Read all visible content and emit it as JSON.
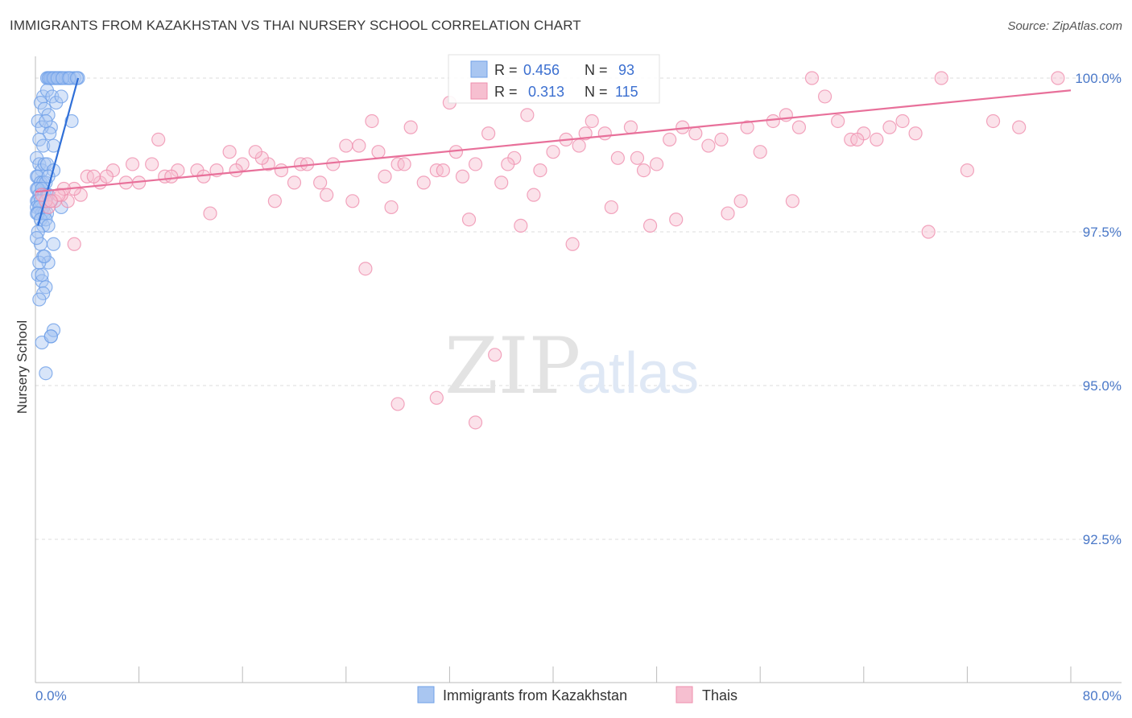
{
  "header": {
    "title": "IMMIGRANTS FROM KAZAKHSTAN VS THAI NURSERY SCHOOL CORRELATION CHART",
    "source": "Source: ZipAtlas.com"
  },
  "watermark": {
    "zip": "ZIP",
    "atlas": "atlas"
  },
  "colors": {
    "blue": "#6fa0e8",
    "blue_fill": "#a9c6f1",
    "blue_line": "#2f6fd8",
    "pink": "#ef8fae",
    "pink_fill": "#f6bfd0",
    "pink_line": "#e8709a",
    "tick": "#4a78c8"
  },
  "stats": {
    "r_label": "R =",
    "n_label": "N =",
    "blue": {
      "r": "0.456",
      "n": "93"
    },
    "pink": {
      "r": "0.313",
      "n": "115"
    }
  },
  "legend": [
    "Immigrants from Kazakhstan",
    "Thais"
  ],
  "chart_data": {
    "type": "scatter",
    "ylabel": "Nursery School",
    "xlim": [
      0,
      80
    ],
    "ylim": [
      90.5,
      100.3
    ],
    "x_tick_labels": [
      "0.0%",
      "80.0%"
    ],
    "y_ticks": [
      100.0,
      97.5,
      95.0,
      92.5
    ],
    "y_tick_labels": [
      "100.0%",
      "97.5%",
      "95.0%",
      "92.5%"
    ],
    "series": [
      {
        "name": "Immigrants from Kazakhstan",
        "trend": {
          "x": [
            0.2,
            3.3
          ],
          "y": [
            97.6,
            100.0
          ]
        },
        "x": [
          0.9,
          1.0,
          1.2,
          1.3,
          1.5,
          1.6,
          1.8,
          1.9,
          2.0,
          2.3,
          2.5,
          2.7,
          3.0,
          3.3,
          1.1,
          1.4,
          1.7,
          2.1,
          2.6,
          3.2,
          0.6,
          0.9,
          1.3,
          1.6,
          2.0,
          0.4,
          0.7,
          1.0,
          1.2,
          2.8,
          0.2,
          0.5,
          0.8,
          1.1,
          0.3,
          0.6,
          1.4,
          0.1,
          0.3,
          0.5,
          0.7,
          0.9,
          1.4,
          0.1,
          0.2,
          0.4,
          0.6,
          0.8,
          1.0,
          0.1,
          0.2,
          0.3,
          0.5,
          0.7,
          0.9,
          0.1,
          0.2,
          0.4,
          0.6,
          0.8,
          1.0,
          1.2,
          0.1,
          0.3,
          0.5,
          0.7,
          0.9,
          0.1,
          0.2,
          0.4,
          0.6,
          0.8,
          1.0,
          0.2,
          0.4,
          0.6,
          1.0,
          0.2,
          0.5,
          0.8,
          0.1,
          0.3,
          0.6,
          1.4,
          2.0,
          0.3,
          0.5,
          0.7,
          1.2,
          1.4,
          0.5,
          1.2,
          0.8
        ],
        "y": [
          100.0,
          100.0,
          100.0,
          100.0,
          100.0,
          100.0,
          100.0,
          100.0,
          100.0,
          100.0,
          100.0,
          100.0,
          100.0,
          100.0,
          100.0,
          100.0,
          100.0,
          100.0,
          100.0,
          100.0,
          99.7,
          99.8,
          99.7,
          99.6,
          99.7,
          99.6,
          99.5,
          99.4,
          99.2,
          99.3,
          99.3,
          99.2,
          99.3,
          99.1,
          99.0,
          98.9,
          98.9,
          98.7,
          98.6,
          98.5,
          98.6,
          98.6,
          98.5,
          98.4,
          98.4,
          98.3,
          98.3,
          98.3,
          98.4,
          98.2,
          98.2,
          98.1,
          98.2,
          98.1,
          98.1,
          98.0,
          98.0,
          98.0,
          97.9,
          98.0,
          98.1,
          98.0,
          97.9,
          97.9,
          97.8,
          97.8,
          97.8,
          97.8,
          97.8,
          97.7,
          97.6,
          97.7,
          97.6,
          97.5,
          97.3,
          97.1,
          97.0,
          96.8,
          96.7,
          96.6,
          97.4,
          97.0,
          96.5,
          97.3,
          97.9,
          96.4,
          96.8,
          97.1,
          95.8,
          95.9,
          95.7,
          95.8,
          95.2
        ]
      },
      {
        "name": "Thais",
        "trend": {
          "x": [
            0.0,
            80.0
          ],
          "y": [
            98.15,
            99.8
          ]
        },
        "x": [
          26.0,
          32.0,
          38.0,
          43.0,
          50.0,
          60.0,
          70.0,
          35.0,
          29.0,
          24.0,
          18.0,
          14.0,
          10.0,
          8.0,
          6.0,
          5.0,
          4.0,
          3.5,
          3.0,
          2.5,
          2.0,
          1.5,
          1.0,
          0.8,
          0.5,
          7.0,
          9.0,
          11.0,
          12.5,
          15.0,
          16.0,
          17.5,
          19.0,
          20.5,
          22.0,
          23.0,
          25.0,
          27.0,
          28.0,
          30.0,
          31.0,
          33.0,
          34.0,
          36.0,
          37.0,
          39.0,
          40.0,
          41.0,
          42.0,
          44.0,
          45.0,
          46.0,
          47.0,
          48.0,
          49.0,
          51.0,
          52.0,
          53.0,
          55.0,
          57.0,
          58.0,
          59.0,
          62.0,
          63.0,
          64.0,
          65.0,
          66.0,
          67.0,
          68.0,
          72.0,
          74.0,
          76.0,
          79.0,
          9.5,
          13.0,
          21.0,
          26.5,
          31.5,
          36.5,
          42.5,
          46.5,
          56.0,
          61.0,
          13.5,
          18.5,
          22.5,
          27.5,
          33.5,
          37.5,
          41.5,
          47.5,
          53.5,
          5.5,
          7.5,
          10.5,
          15.5,
          17.0,
          20.0,
          24.5,
          28.5,
          32.5,
          38.5,
          44.5,
          49.5,
          54.5,
          58.5,
          63.5,
          69.0,
          3.0,
          4.5,
          2.2,
          1.8,
          1.2,
          25.5,
          35.5
        ],
        "y": [
          99.3,
          99.6,
          99.4,
          99.3,
          99.2,
          100.0,
          100.0,
          99.1,
          99.2,
          98.9,
          98.6,
          98.5,
          98.4,
          98.3,
          98.5,
          98.3,
          98.4,
          98.1,
          98.2,
          98.0,
          98.1,
          98.0,
          97.9,
          98.0,
          98.1,
          98.3,
          98.6,
          98.5,
          98.5,
          98.8,
          98.6,
          98.7,
          98.5,
          98.6,
          98.3,
          98.6,
          98.9,
          98.4,
          98.6,
          98.3,
          98.5,
          98.4,
          98.6,
          98.3,
          98.7,
          98.5,
          98.8,
          99.0,
          98.9,
          99.1,
          98.7,
          99.2,
          98.5,
          98.6,
          99.0,
          99.1,
          98.9,
          99.0,
          99.2,
          99.3,
          99.4,
          99.2,
          99.3,
          99.0,
          99.1,
          99.0,
          99.2,
          99.3,
          99.1,
          98.5,
          99.3,
          99.2,
          100.0,
          99.0,
          98.4,
          98.6,
          98.8,
          98.5,
          98.6,
          99.1,
          98.7,
          98.8,
          99.7,
          97.8,
          98.0,
          98.1,
          97.9,
          97.7,
          97.6,
          97.3,
          97.6,
          97.8,
          98.4,
          98.6,
          98.4,
          98.5,
          98.8,
          98.3,
          98.0,
          98.6,
          98.8,
          98.1,
          97.9,
          97.7,
          98.0,
          98.0,
          99.0,
          97.5,
          97.3,
          98.4,
          98.2,
          98.1,
          98.0,
          96.9,
          95.5
        ]
      }
    ],
    "extra_points_pink": {
      "x": [
        28.0,
        31.0,
        34.0
      ],
      "y": [
        94.7,
        94.8,
        94.4
      ]
    }
  }
}
